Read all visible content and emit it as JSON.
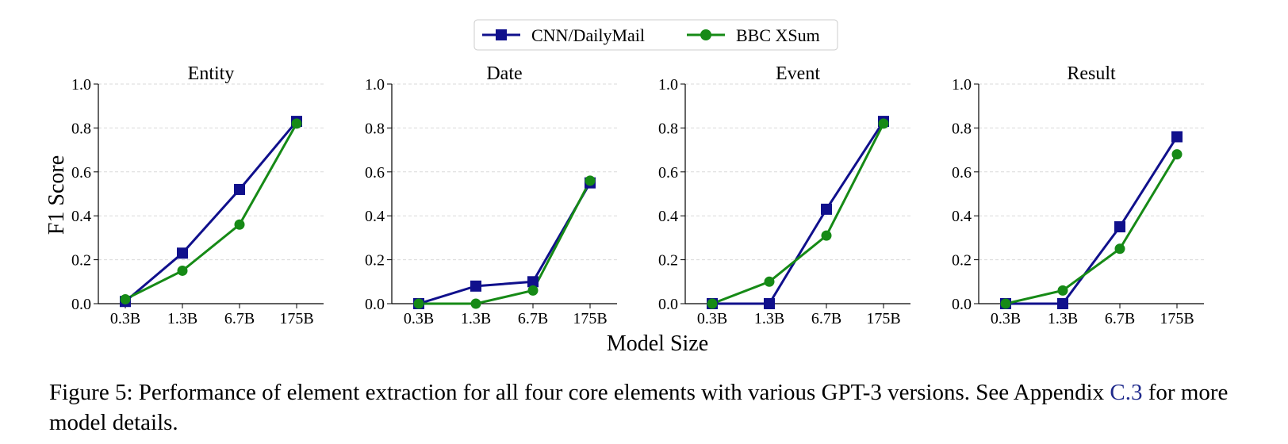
{
  "chart_data": {
    "type": "line",
    "shared": {
      "categories": [
        "0.3B",
        "1.3B",
        "6.7B",
        "175B"
      ],
      "ylabel": "F1 Score",
      "xlabel": "Model Size",
      "ylim": [
        0,
        1.0
      ],
      "yticks": [
        "0.0",
        "0.2",
        "0.4",
        "0.6",
        "0.8",
        "1.0"
      ],
      "grid": true,
      "legend_position": "top-center"
    },
    "legend": [
      {
        "name": "CNN/DailyMail",
        "color": "#10108c",
        "marker": "square"
      },
      {
        "name": "BBC XSum",
        "color": "#168a16",
        "marker": "circle"
      }
    ],
    "panels": [
      {
        "title": "Entity",
        "series": [
          {
            "name": "CNN/DailyMail",
            "values": [
              0.01,
              0.23,
              0.52,
              0.83
            ]
          },
          {
            "name": "BBC XSum",
            "values": [
              0.02,
              0.15,
              0.36,
              0.82
            ]
          }
        ]
      },
      {
        "title": "Date",
        "series": [
          {
            "name": "CNN/DailyMail",
            "values": [
              0.0,
              0.08,
              0.1,
              0.55
            ]
          },
          {
            "name": "BBC XSum",
            "values": [
              0.0,
              0.0,
              0.06,
              0.56
            ]
          }
        ]
      },
      {
        "title": "Event",
        "series": [
          {
            "name": "CNN/DailyMail",
            "values": [
              0.0,
              0.0,
              0.43,
              0.83
            ]
          },
          {
            "name": "BBC XSum",
            "values": [
              0.0,
              0.1,
              0.31,
              0.82
            ]
          }
        ]
      },
      {
        "title": "Result",
        "series": [
          {
            "name": "CNN/DailyMail",
            "values": [
              0.0,
              0.0,
              0.35,
              0.76
            ]
          },
          {
            "name": "BBC XSum",
            "values": [
              0.0,
              0.06,
              0.25,
              0.68
            ]
          }
        ]
      }
    ]
  },
  "caption": {
    "text_before": "Figure 5: Performance of element extraction for all four core elements with various GPT-3 versions. See Appendix ",
    "link": "C.3",
    "text_after": " for more model details."
  }
}
